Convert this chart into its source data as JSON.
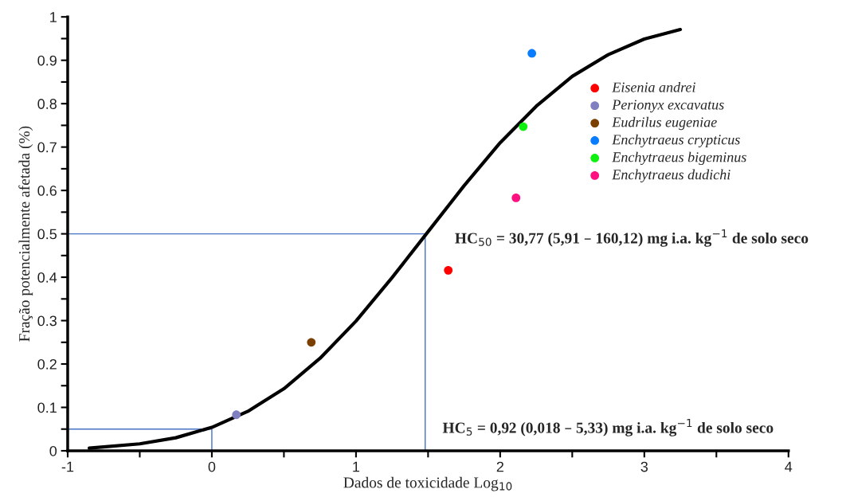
{
  "chart_data": {
    "type": "scatter",
    "xlabel": "Dados de toxicidade Log$_{10}$",
    "ylabel": "Fração potencialmente afetada (%)",
    "xlim": [
      -1,
      4
    ],
    "ylim": [
      0,
      1
    ],
    "xticks": [
      -1,
      {
        "value": -0.5,
        "label": null
      },
      0,
      {
        "value": 0.5,
        "label": null
      },
      1,
      {
        "value": 1.5,
        "label": null
      },
      2,
      {
        "value": 2.5,
        "label": null
      },
      3,
      {
        "value": 3.5,
        "label": null
      },
      4
    ],
    "yticks": [
      0,
      {
        "value": 0.05,
        "label": null
      },
      0.1,
      {
        "value": 0.15,
        "label": null
      },
      0.2,
      {
        "value": 0.25,
        "label": null
      },
      0.3,
      {
        "value": 0.35,
        "label": null
      },
      0.4,
      {
        "value": 0.45,
        "label": null
      },
      0.5,
      {
        "value": 0.55,
        "label": null
      },
      0.6,
      {
        "value": 0.65,
        "label": null
      },
      0.7,
      {
        "value": 0.75,
        "label": null
      },
      0.8,
      {
        "value": 0.85,
        "label": null
      },
      0.9,
      {
        "value": 0.95,
        "label": null
      },
      1
    ],
    "grid": false,
    "legend": "top right",
    "marker": "circle",
    "series": [
      {
        "type": "line",
        "marker": "none",
        "color": "#4472c4",
        "x": [
          -1,
          1.48,
          1.48
        ],
        "values": [
          0.5,
          0.5,
          0
        ]
      },
      {
        "type": "line",
        "marker": "none",
        "color": "#4472c4",
        "x": [
          -1,
          0,
          0
        ],
        "values": [
          0.05,
          0.05,
          0
        ]
      },
      {
        "type": "line",
        "marker": "none",
        "color": "#000000",
        "x": [
          -0.85,
          -0.5,
          -0.25,
          0,
          0.25,
          0.5,
          0.75,
          1.0,
          1.25,
          1.5,
          1.75,
          2.0,
          2.25,
          2.5,
          2.75,
          3.0,
          3.25
        ],
        "values": [
          0.006,
          0.016,
          0.03,
          0.054,
          0.091,
          0.143,
          0.213,
          0.299,
          0.399,
          0.505,
          0.611,
          0.71,
          0.794,
          0.863,
          0.913,
          0.949,
          0.971
        ]
      },
      {
        "name": "Eisenia andrei",
        "color": "#ff0000",
        "x": [
          1.64
        ],
        "values": [
          0.416
        ]
      },
      {
        "name": "Perionyx excavatus",
        "color": "#8080c0",
        "x": [
          0.17
        ],
        "values": [
          0.083
        ]
      },
      {
        "name": "Eudrilus eugeniae",
        "color": "#7b3f00",
        "x": [
          0.69
        ],
        "values": [
          0.25
        ]
      },
      {
        "name": "Enchytraeus crypticus",
        "color": "#0a7cff",
        "x": [
          2.22
        ],
        "values": [
          0.916
        ]
      },
      {
        "name": "Enchytraeus bigeminus",
        "color": "#10f010",
        "x": [
          2.16
        ],
        "values": [
          0.747
        ]
      },
      {
        "name": "Enchytraeus dudichi",
        "color": "#ff1080",
        "x": [
          2.11
        ],
        "values": [
          0.583
        ]
      }
    ],
    "annotations": [
      "HC$_{50}$ = 30,77 (5,91 – 160,12) mg i.a. kg$^{−1}$ de solo seco",
      "HC$_{5}$ = 0,92 (0,018 – 5,33) mg i.a. kg$^{−1}$ de solo seco"
    ]
  }
}
